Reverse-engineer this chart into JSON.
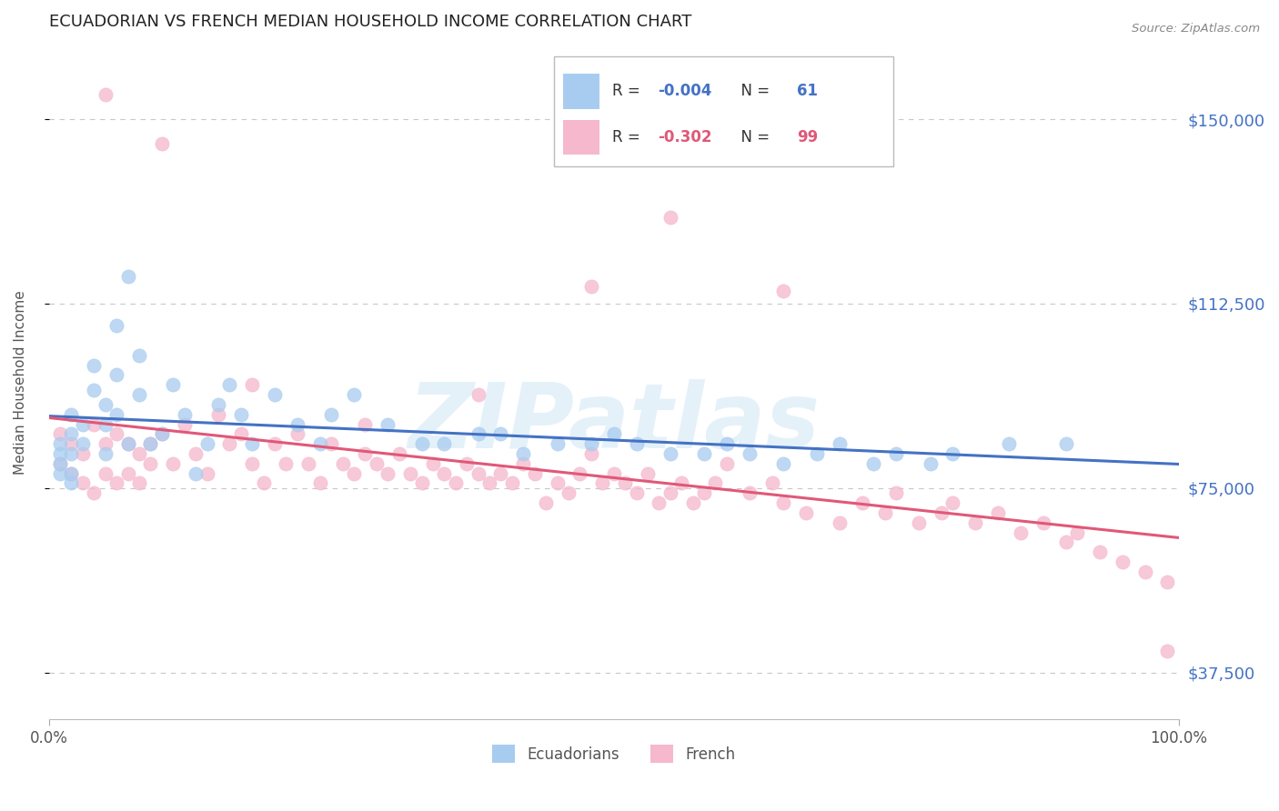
{
  "title": "ECUADORIAN VS FRENCH MEDIAN HOUSEHOLD INCOME CORRELATION CHART",
  "source": "Source: ZipAtlas.com",
  "ylabel": "Median Household Income",
  "xlim": [
    0,
    100
  ],
  "ylim": [
    28000,
    165000
  ],
  "yticks": [
    37500,
    75000,
    112500,
    150000
  ],
  "ytick_labels": [
    "$37,500",
    "$75,000",
    "$112,500",
    "$150,000"
  ],
  "xticks": [
    0,
    100
  ],
  "xtick_labels": [
    "0.0%",
    "100.0%"
  ],
  "background_color": "#ffffff",
  "grid_color": "#c8c8c8",
  "watermark": "ZIPatlas",
  "ecuadorian_color": "#a8ccf0",
  "french_color": "#f5b8cc",
  "ecuadorian_trend_color": "#4472c4",
  "french_trend_color": "#e05878",
  "scatter_size": 120,
  "scatter_alpha": 0.75,
  "ecu_x": [
    1,
    1,
    1,
    1,
    2,
    2,
    2,
    2,
    2,
    3,
    3,
    4,
    4,
    5,
    5,
    5,
    6,
    6,
    6,
    7,
    7,
    8,
    8,
    9,
    10,
    11,
    12,
    13,
    14,
    15,
    16,
    17,
    18,
    20,
    22,
    24,
    25,
    27,
    30,
    33,
    35,
    38,
    40,
    42,
    45,
    48,
    50,
    52,
    55,
    58,
    60,
    62,
    65,
    68,
    70,
    73,
    75,
    78,
    80,
    85,
    90
  ],
  "ecu_y": [
    84000,
    82000,
    80000,
    78000,
    90000,
    86000,
    82000,
    78000,
    76000,
    88000,
    84000,
    100000,
    95000,
    92000,
    88000,
    82000,
    108000,
    98000,
    90000,
    118000,
    84000,
    102000,
    94000,
    84000,
    86000,
    96000,
    90000,
    78000,
    84000,
    92000,
    96000,
    90000,
    84000,
    94000,
    88000,
    84000,
    90000,
    94000,
    88000,
    84000,
    84000,
    86000,
    86000,
    82000,
    84000,
    84000,
    86000,
    84000,
    82000,
    82000,
    84000,
    82000,
    80000,
    82000,
    84000,
    80000,
    82000,
    80000,
    82000,
    84000,
    84000
  ],
  "fre_x": [
    1,
    1,
    2,
    2,
    3,
    3,
    4,
    4,
    5,
    5,
    6,
    6,
    7,
    7,
    8,
    8,
    9,
    9,
    10,
    11,
    12,
    13,
    14,
    15,
    16,
    17,
    18,
    19,
    20,
    21,
    22,
    23,
    24,
    25,
    26,
    27,
    28,
    29,
    30,
    31,
    32,
    33,
    34,
    35,
    36,
    37,
    38,
    39,
    40,
    41,
    42,
    43,
    44,
    45,
    46,
    47,
    48,
    49,
    50,
    51,
    52,
    53,
    54,
    55,
    56,
    57,
    58,
    59,
    60,
    62,
    64,
    65,
    67,
    70,
    72,
    74,
    75,
    77,
    79,
    80,
    82,
    84,
    86,
    88,
    90,
    91,
    93,
    95,
    97,
    99,
    48,
    55,
    65,
    38,
    28,
    18,
    10,
    5,
    99
  ],
  "fre_y": [
    86000,
    80000,
    84000,
    78000,
    82000,
    76000,
    88000,
    74000,
    84000,
    78000,
    86000,
    76000,
    84000,
    78000,
    82000,
    76000,
    80000,
    84000,
    86000,
    80000,
    88000,
    82000,
    78000,
    90000,
    84000,
    86000,
    80000,
    76000,
    84000,
    80000,
    86000,
    80000,
    76000,
    84000,
    80000,
    78000,
    82000,
    80000,
    78000,
    82000,
    78000,
    76000,
    80000,
    78000,
    76000,
    80000,
    78000,
    76000,
    78000,
    76000,
    80000,
    78000,
    72000,
    76000,
    74000,
    78000,
    82000,
    76000,
    78000,
    76000,
    74000,
    78000,
    72000,
    74000,
    76000,
    72000,
    74000,
    76000,
    80000,
    74000,
    76000,
    72000,
    70000,
    68000,
    72000,
    70000,
    74000,
    68000,
    70000,
    72000,
    68000,
    70000,
    66000,
    68000,
    64000,
    66000,
    62000,
    60000,
    58000,
    56000,
    116000,
    130000,
    115000,
    94000,
    88000,
    96000,
    145000,
    155000,
    42000
  ]
}
